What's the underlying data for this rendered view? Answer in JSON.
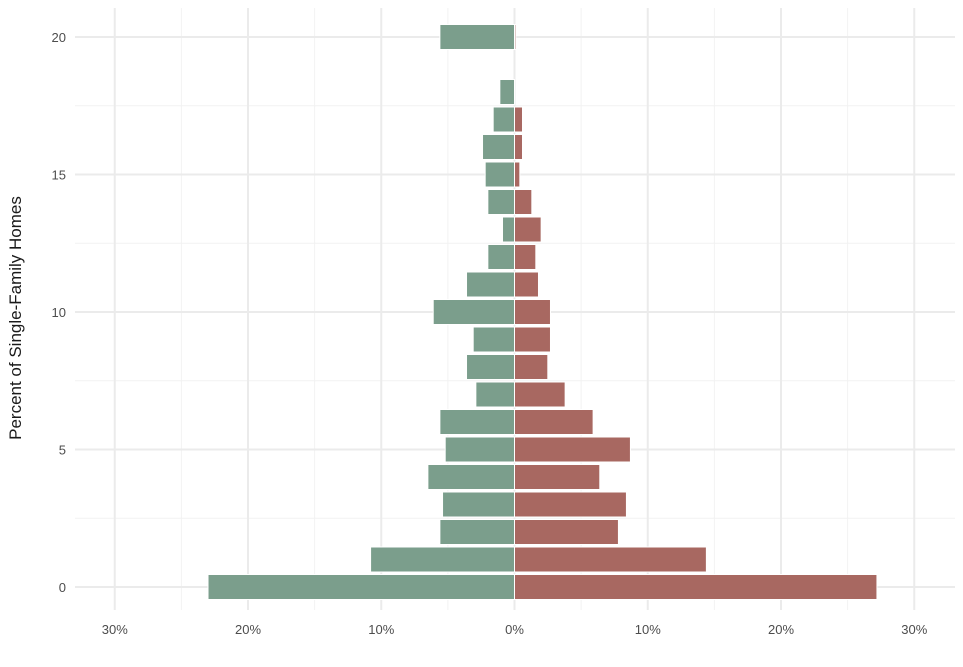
{
  "chart_data": {
    "type": "bar",
    "orientation": "horizontal-diverging",
    "ylabel": "Percent of Single-Family Homes",
    "xlabel": "",
    "title": "",
    "xlim": [
      -0.315,
      0.315
    ],
    "ylim": [
      -1,
      21
    ],
    "x_ticks": [
      -0.3,
      -0.2,
      -0.1,
      0.0,
      0.1,
      0.2,
      0.3
    ],
    "x_tick_labels": [
      "30%",
      "20%",
      "10%",
      "0%",
      "10%",
      "20%",
      "30%"
    ],
    "y_ticks": [
      0,
      5,
      10,
      15,
      20
    ],
    "y_tick_labels": [
      "0",
      "5",
      "10",
      "15",
      "20"
    ],
    "grid": true,
    "legend": "none",
    "categories": [
      0,
      1,
      2,
      3,
      4,
      5,
      6,
      7,
      8,
      9,
      10,
      11,
      12,
      13,
      14,
      15,
      16,
      17,
      18,
      19,
      20
    ],
    "series": [
      {
        "side": "left",
        "color": "#7b9e8c",
        "values": [
          -0.23,
          -0.108,
          -0.056,
          -0.054,
          -0.065,
          -0.052,
          -0.056,
          -0.029,
          -0.036,
          -0.031,
          -0.061,
          -0.036,
          -0.02,
          -0.009,
          -0.02,
          -0.022,
          -0.024,
          -0.016,
          -0.011,
          0,
          -0.056
        ]
      },
      {
        "side": "right",
        "color": "#a86861",
        "values": [
          0.272,
          0.144,
          0.078,
          0.084,
          0.064,
          0.087,
          0.059,
          0.038,
          0.025,
          0.027,
          0.027,
          0.018,
          0.016,
          0.02,
          0.013,
          0.004,
          0.006,
          0.006,
          0,
          0,
          0.001
        ]
      }
    ]
  }
}
